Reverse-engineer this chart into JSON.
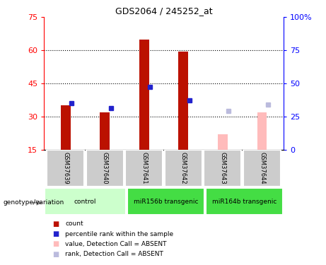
{
  "title": "GDS2064 / 245252_at",
  "samples": [
    "GSM37639",
    "GSM37640",
    "GSM37641",
    "GSM37642",
    "GSM37643",
    "GSM37644"
  ],
  "red_values": [
    35.0,
    32.0,
    65.0,
    59.5,
    null,
    null
  ],
  "blue_values": [
    36.0,
    34.0,
    43.5,
    37.5,
    null,
    null
  ],
  "pink_values": [
    null,
    null,
    null,
    null,
    22.0,
    32.0
  ],
  "lavender_values": [
    null,
    null,
    null,
    null,
    32.5,
    35.5
  ],
  "ylim": [
    15,
    75
  ],
  "yticks_left": [
    15,
    30,
    45,
    60,
    75
  ],
  "yticks_right_labels": [
    "0",
    "25",
    "50",
    "75",
    "100%"
  ],
  "red_color": "#bb1100",
  "blue_color": "#2222cc",
  "pink_color": "#ffbbbb",
  "lavender_color": "#bbbbdd",
  "sample_box_color": "#cccccc",
  "grp_colors": [
    "#ccffcc",
    "#44dd44",
    "#44dd44"
  ],
  "grp_labels": [
    "control",
    "miR156b transgenic",
    "miR164b transgenic"
  ],
  "legend_items": [
    {
      "label": "count",
      "color": "#bb1100"
    },
    {
      "label": "percentile rank within the sample",
      "color": "#2222cc"
    },
    {
      "label": "value, Detection Call = ABSENT",
      "color": "#ffbbbb"
    },
    {
      "label": "rank, Detection Call = ABSENT",
      "color": "#bbbbdd"
    }
  ]
}
